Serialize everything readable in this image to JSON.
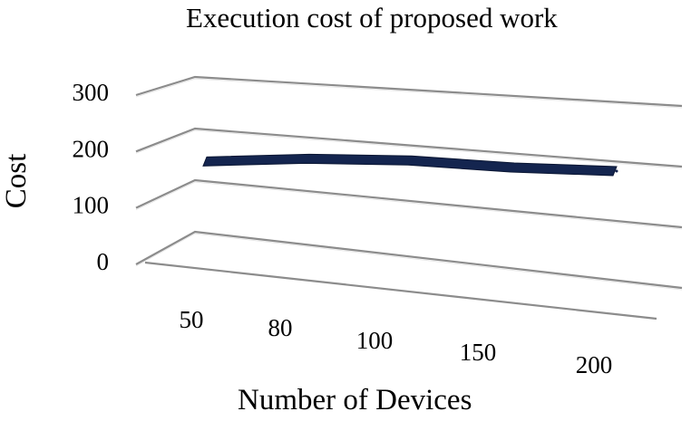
{
  "chart_data": {
    "type": "line",
    "title": "Execution cost of proposed work",
    "xlabel": "Number of Devices",
    "ylabel": "Cost",
    "categories": [
      "50",
      "80",
      "100",
      "150",
      "200"
    ],
    "series": [
      {
        "values": [
          145,
          170,
          185,
          190,
          200
        ]
      }
    ],
    "y_ticks": [
      "0",
      "100",
      "200",
      "300"
    ],
    "ylim": [
      0,
      300
    ],
    "grid": true,
    "style": "3d",
    "colors": {
      "series": "#14254f",
      "grid": "#8c8c8c"
    }
  }
}
